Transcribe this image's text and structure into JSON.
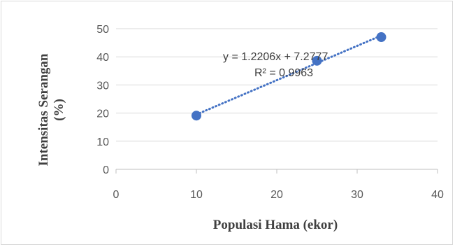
{
  "chart_data": {
    "type": "scatter",
    "title": "",
    "xlabel": "Populasi Hama (ekor)",
    "ylabel_line1": "Intensitas Serangan",
    "ylabel_line2": "(%)",
    "xlim": [
      0,
      40
    ],
    "ylim": [
      0,
      50
    ],
    "xticks": [
      0,
      10,
      20,
      30,
      40
    ],
    "yticks": [
      0,
      10,
      20,
      30,
      40,
      50
    ],
    "x_tick_labels": [
      "0",
      "10",
      "20",
      "30",
      "40"
    ],
    "y_tick_labels": [
      "0",
      "10",
      "20",
      "30",
      "40",
      "50"
    ],
    "grid": "horizontal",
    "legend": "none",
    "series": [
      {
        "points": [
          {
            "x": 10,
            "y": 19.1
          },
          {
            "x": 25,
            "y": 38.6
          },
          {
            "x": 33,
            "y": 47.0
          }
        ],
        "color": "#4472c4"
      }
    ],
    "trendline": {
      "kind": "linear",
      "slope": 1.2206,
      "intercept": 7.2777,
      "x_range": [
        10,
        33
      ],
      "style": "dotted",
      "color": "#4472c4",
      "equation_label": "y = 1.2206x + 7.2777",
      "r2_label": "R² = 0.9963"
    }
  }
}
